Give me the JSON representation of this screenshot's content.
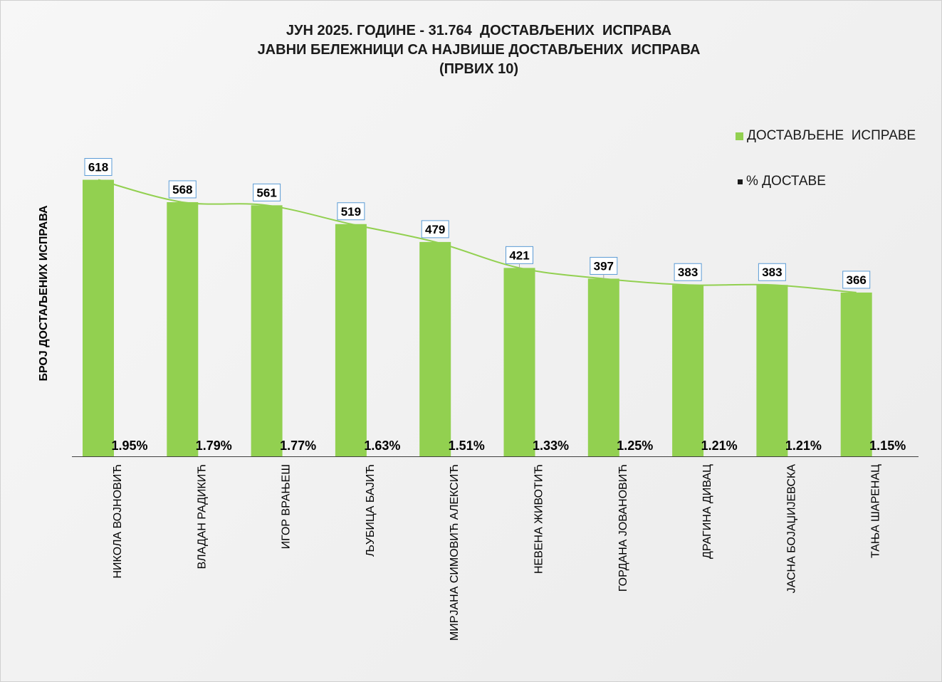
{
  "title_lines": [
    "ЈУН 2025. ГОДИНЕ - 31.764  ДОСТАВЉЕНИХ  ИСПРАВА",
    "ЈАВНИ БЕЛЕЖНИЦИ СА НАЈВИШЕ ДОСТАВЉЕНИХ  ИСПРАВА",
    "(ПРВИХ 10)"
  ],
  "colors": {
    "bar": "#92d050",
    "trendline": "#92d050",
    "pct_series": "#1a1a1a",
    "label_border": "#5b9bd5",
    "axis": "#404040"
  },
  "legend": [
    {
      "label": "ДОСТАВЉЕНЕ  ИСПРАВЕ",
      "color": "#92d050"
    },
    {
      "label": "% ДОСТАВЕ",
      "color": "#1a1a1a"
    }
  ],
  "chart_data": {
    "type": "bar",
    "title": "ЈУН 2025. ГОДИНЕ - 31.764  ДОСТАВЉЕНИХ  ИСПРАВА / ЈАВНИ БЕЛЕЖНИЦИ СА НАЈВИШЕ ДОСТАВЉЕНИХ  ИСПРАВА / (ПРВИХ 10)",
    "ylabel": "БРОЈ ДОСТАЉЕНИХ ИСПРАВА",
    "xlabel": "",
    "categories": [
      "НИКОЛА ВОЈНОВИЋ",
      "ВЛАДАН РАДИКИЋ",
      "ИГОР ВРАЊЕШ",
      "ЉУБИЦА БАЈИЋ",
      "МИРЈАНА СИМОВИЋ АЛЕКСИЋ",
      "НЕВЕНА ЖИВОТИЋ",
      "ГОРДАНА ЈОВАНОВИЋ",
      "ДРАГИНА ДИВАЦ",
      "ЈАСНА БОЈАЏИЈЕВСКА",
      "ТАЊА ШАРЕНАЦ"
    ],
    "series": [
      {
        "name": "ДОСТАВЉЕНЕ  ИСПРАВЕ",
        "values": [
          618,
          568,
          561,
          519,
          479,
          421,
          397,
          383,
          383,
          366
        ],
        "labels": [
          "618",
          "568",
          "561",
          "519",
          "479",
          "421",
          "397",
          "383",
          "383",
          "366"
        ]
      },
      {
        "name": "% ДОСТАВЕ",
        "values": [
          1.95,
          1.79,
          1.77,
          1.63,
          1.51,
          1.33,
          1.25,
          1.21,
          1.21,
          1.15
        ],
        "labels": [
          "1.95%",
          "1.79%",
          "1.77%",
          "1.63%",
          "1.51%",
          "1.33%",
          "1.25%",
          "1.21%",
          "1.21%",
          "1.15%"
        ]
      }
    ],
    "trendline": "smoothed line through bar tops",
    "ylim": [
      0,
      700
    ],
    "grid": false,
    "legend_position": "top-right"
  }
}
